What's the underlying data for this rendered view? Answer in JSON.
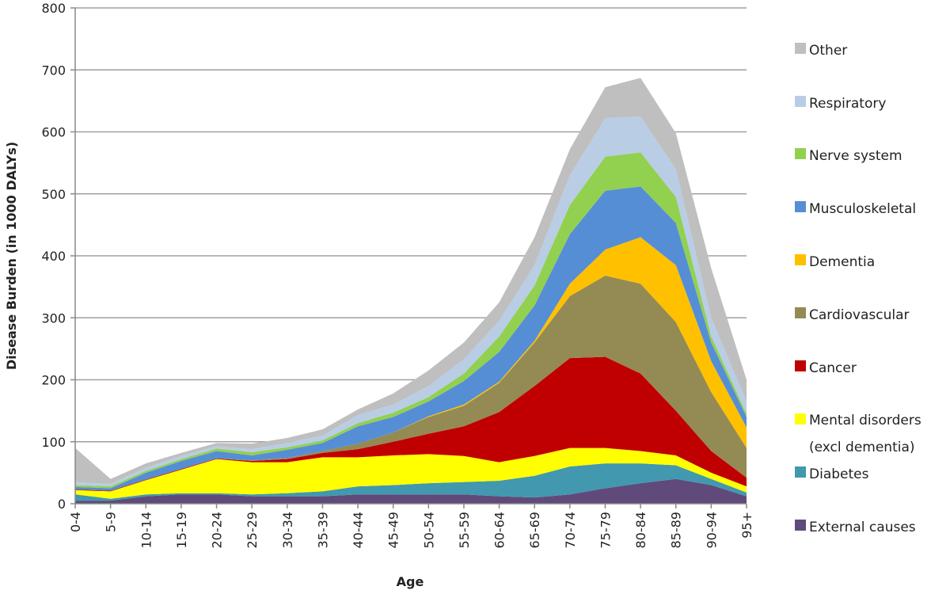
{
  "chart_data": {
    "type": "area",
    "stacked": true,
    "title": "",
    "xlabel": "Age",
    "ylabel": "Disease Burden (in 1000 DALYs)",
    "ylim": [
      0,
      800
    ],
    "yticks": [
      0,
      100,
      200,
      300,
      400,
      500,
      600,
      700,
      800
    ],
    "grid": true,
    "legend_position": "right",
    "categories": [
      "0-4",
      "5-9",
      "10-14",
      "15-19",
      "20-24",
      "25-29",
      "30-34",
      "35-39",
      "40-44",
      "45-49",
      "50-54",
      "55-59",
      "60-64",
      "65-69",
      "70-74",
      "75-79",
      "80-84",
      "85-89",
      "90-94",
      "95+"
    ],
    "series": [
      {
        "name": "External causes",
        "color": "#604a7b",
        "values": [
          5,
          5,
          12,
          15,
          15,
          12,
          12,
          12,
          15,
          15,
          15,
          15,
          12,
          10,
          15,
          25,
          33,
          40,
          30,
          12
        ]
      },
      {
        "name": "Diabetes",
        "color": "#4198af",
        "values": [
          10,
          3,
          3,
          2,
          2,
          3,
          5,
          8,
          13,
          15,
          18,
          20,
          25,
          35,
          45,
          40,
          32,
          22,
          10,
          6
        ]
      },
      {
        "name": "Mental disorders (excl dementia)",
        "name_lines": [
          "Mental disorders",
          "(excl dementia)"
        ],
        "color": "#ffff00",
        "values": [
          7,
          12,
          23,
          38,
          55,
          52,
          50,
          55,
          47,
          48,
          47,
          42,
          30,
          32,
          30,
          25,
          20,
          16,
          10,
          10
        ]
      },
      {
        "name": "Cancer",
        "color": "#c00000",
        "values": [
          1,
          1,
          1,
          1,
          1,
          2,
          5,
          7,
          13,
          22,
          33,
          48,
          81,
          113,
          145,
          147,
          125,
          72,
          35,
          14
        ]
      },
      {
        "name": "Cardiovascular",
        "color": "#948a54",
        "values": [
          0,
          0,
          0,
          0,
          0,
          1,
          2,
          3,
          9,
          15,
          27,
          33,
          47,
          70,
          100,
          131,
          145,
          143,
          95,
          48
        ]
      },
      {
        "name": "Dementia",
        "color": "#ffc000",
        "values": [
          0,
          0,
          0,
          0,
          0,
          0,
          0,
          0,
          0,
          0,
          1,
          2,
          2,
          3,
          20,
          42,
          75,
          92,
          50,
          33
        ]
      },
      {
        "name": "Musculoskeletal",
        "color": "#558ed5",
        "values": [
          4,
          4,
          11,
          13,
          12,
          8,
          13,
          13,
          28,
          25,
          24,
          38,
          48,
          57,
          80,
          95,
          82,
          68,
          30,
          17
        ]
      },
      {
        "name": "Nerve system",
        "color": "#92d050",
        "values": [
          3,
          3,
          3,
          3,
          4,
          5,
          4,
          4,
          5,
          7,
          7,
          12,
          25,
          32,
          47,
          55,
          55,
          42,
          10,
          5
        ]
      },
      {
        "name": "Respiratory",
        "color": "#b9cde5",
        "values": [
          5,
          4,
          5,
          5,
          4,
          5,
          7,
          8,
          13,
          13,
          18,
          23,
          25,
          33,
          48,
          62,
          58,
          45,
          30,
          20
        ]
      },
      {
        "name": "Other",
        "color": "#bfbfbf",
        "values": [
          55,
          8,
          7,
          5,
          5,
          9,
          8,
          10,
          9,
          18,
          25,
          27,
          30,
          45,
          42,
          50,
          62,
          58,
          80,
          35
        ]
      }
    ]
  }
}
